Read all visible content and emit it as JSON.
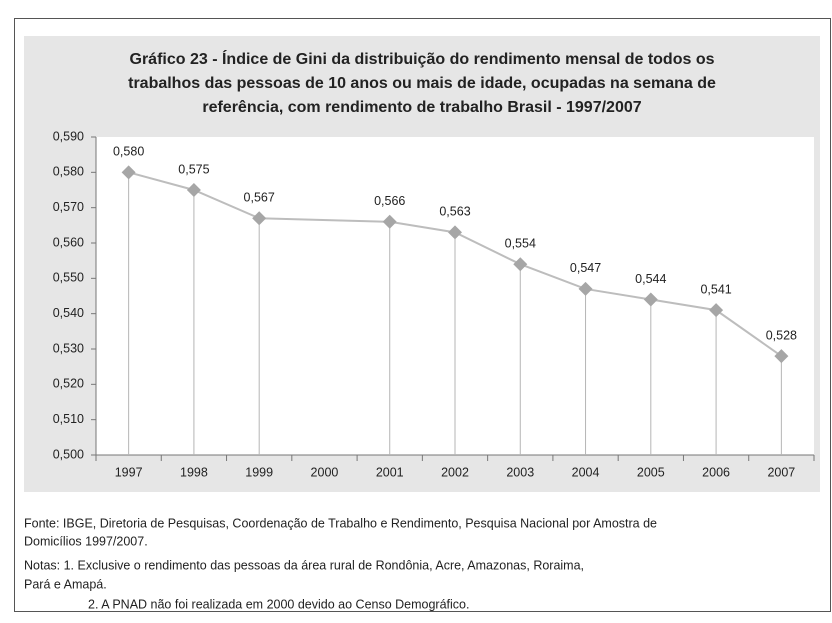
{
  "chart_data": {
    "type": "line",
    "title": [
      "Gráfico 23 - Índice de Gini da distribuição do rendimento mensal de todos os",
      "trabalhos  das pessoas de 10 anos ou mais de idade, ocupadas na semana de",
      "referência, com rendimento de trabalho Brasil - 1997/2007"
    ],
    "x": [
      1997,
      1998,
      1999,
      2001,
      2002,
      2003,
      2004,
      2005,
      2006,
      2007
    ],
    "values": [
      0.58,
      0.575,
      0.567,
      0.566,
      0.563,
      0.554,
      0.547,
      0.544,
      0.541,
      0.528
    ],
    "value_labels": [
      "0,580",
      "0,575",
      "0,567",
      "0,566",
      "0,563",
      "0,554",
      "0,547",
      "0,544",
      "0,541",
      "0,528"
    ],
    "color": "#a6a6a6",
    "xlim": [
      1996.5,
      2007.5
    ],
    "xticks": [
      1997,
      1998,
      1999,
      2000,
      2001,
      2002,
      2003,
      2004,
      2005,
      2006,
      2007
    ],
    "ylim": [
      0.5,
      0.59
    ],
    "yticks": [
      {
        "value": 0.5,
        "label": "0,500"
      },
      {
        "value": 0.51,
        "label": "0,510"
      },
      {
        "value": 0.52,
        "label": "0,520"
      },
      {
        "value": 0.53,
        "label": "0,530"
      },
      {
        "value": 0.54,
        "label": "0,540"
      },
      {
        "value": 0.55,
        "label": "0,550"
      },
      {
        "value": 0.56,
        "label": "0,560"
      },
      {
        "value": 0.57,
        "label": "0,570"
      },
      {
        "value": 0.58,
        "label": "0,580"
      },
      {
        "value": 0.59,
        "label": "0,590"
      }
    ],
    "grid": false
  },
  "source": [
    "Fonte: IBGE, Diretoria de Pesquisas, Coordenação de Trabalho e Rendimento, Pesquisa Nacional por Amostra de",
    "Domicílios 1997/2007."
  ],
  "notes": [
    "Notas: 1. Exclusive o rendimento das pessoas da área rural de Rondônia, Acre, Amazonas, Roraima,",
    "Pará e Amapá.",
    "2. A PNAD não foi realizada em 2000 devido ao Censo Demográfico."
  ]
}
